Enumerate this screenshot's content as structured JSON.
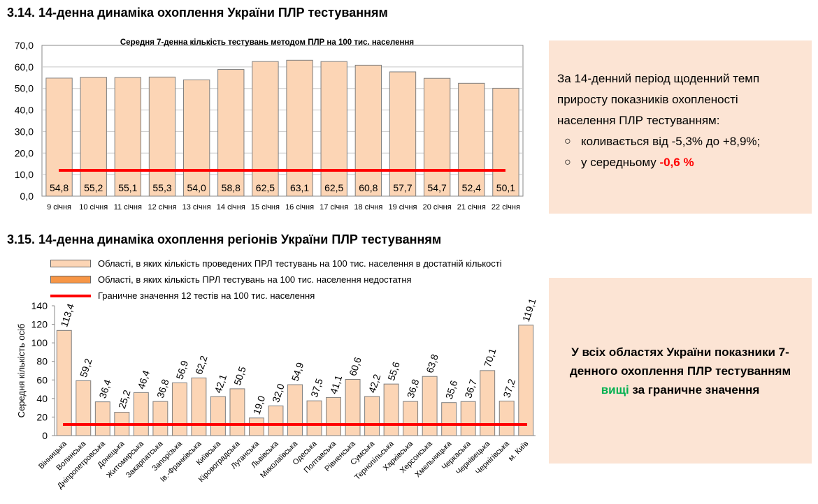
{
  "section1": {
    "title": "3.14.  14-денна динаміка охоплення України ПЛР тестуванням",
    "panel": {
      "intro": "За 14-денний період щоденний темп приросту показників охопленості населення ПЛР тестуванням:",
      "bullet1": "коливається від -5,3% до +8,9%;",
      "bullet2_prefix": "у середньому ",
      "bullet2_value": "-0,6 %",
      "bullet_symbol": "○"
    }
  },
  "section2": {
    "title": "3.15.  14-денна динаміка охоплення регіонів України ПЛР тестуванням",
    "legend": {
      "item1": "Області, в яких кількість проведених ПРЛ тестувань на 100 тис. населення в достатній кількості",
      "item2": "Області, в яких кількість ПРЛ тестувань на 100 тис. населення недостатня",
      "item3": "Граничне значення 12 тестів на 100 тис. населення"
    },
    "panel": {
      "part1": "У всіх областях України показники 7-денного охоплення ПЛР тестуванням ",
      "highlight": "вищі",
      "part2": " за граничне значення"
    }
  },
  "colors": {
    "bar_fill": "#fcd5b5",
    "bar_fill_insufficient": "#f79646",
    "bar_stroke": "#7f7f7f",
    "threshold": "#ff0000",
    "panel_bg": "#fce4d4",
    "highlight_red": "#ff0000",
    "highlight_green": "#00b050"
  },
  "chart_data": [
    {
      "type": "bar",
      "title": "Середня 7-денна кількість тестувань  методом ПЛР на 100 тис. населення",
      "categories": [
        "9 січня",
        "10 січня",
        "11 січня",
        "12 січня",
        "13 січня",
        "14 січня",
        "15 січня",
        "16 січня",
        "17 січня",
        "18 січня",
        "19 січня",
        "20 січня",
        "21 січня",
        "22 січня"
      ],
      "values": [
        54.8,
        55.2,
        55.1,
        55.3,
        54.0,
        58.8,
        62.5,
        63.1,
        62.5,
        60.8,
        57.7,
        54.7,
        52.4,
        50.1
      ],
      "value_labels": [
        "54,8",
        "55,2",
        "55,1",
        "55,3",
        "54,0",
        "58,8",
        "62,5",
        "63,1",
        "62,5",
        "60,8",
        "57,7",
        "54,7",
        "52,4",
        "50,1"
      ],
      "ylim": [
        0,
        70
      ],
      "yticks": [
        "0,0",
        "10,0",
        "20,0",
        "30,0",
        "40,0",
        "50,0",
        "60,0",
        "70,0"
      ],
      "threshold": 12,
      "grid": true
    },
    {
      "type": "bar",
      "ylabel": "Середня кількість осіб",
      "categories": [
        "Вінницька",
        "Волинська",
        "Дніпропетровська",
        "Донецька",
        "Житомирська",
        "Закарпатська",
        "Запорізька",
        "Ів.-Франківська",
        "Київська",
        "Кіровоградська",
        "Луганська",
        "Львівська",
        "Миколаївська",
        "Одеська",
        "Полтавська",
        "Рівненська",
        "Сумська",
        "Тернопільська",
        "Харківська",
        "Херсонська",
        "Хмельницька",
        "Черкаська",
        "Чернівецька",
        "Чернігівська",
        "м. Київ"
      ],
      "values": [
        113.4,
        59.2,
        36.4,
        25.2,
        46.4,
        36.8,
        56.9,
        62.2,
        42.1,
        50.5,
        19.0,
        32.0,
        54.9,
        37.5,
        41.1,
        60.6,
        42.2,
        55.6,
        36.8,
        63.8,
        35.6,
        36.7,
        70.1,
        37.2,
        119.1
      ],
      "value_labels": [
        "113,4",
        "59,2",
        "36,4",
        "25,2",
        "46,4",
        "36,8",
        "56,9",
        "62,2",
        "42,1",
        "50,5",
        "19,0",
        "32,0",
        "54,9",
        "37,5",
        "41,1",
        "60,6",
        "42,2",
        "55,6",
        "36,8",
        "63,8",
        "35,6",
        "36,7",
        "70,1",
        "37,2",
        "119,1"
      ],
      "ylim": [
        0,
        140
      ],
      "yticks": [
        "0",
        "20",
        "40",
        "60",
        "80",
        "100",
        "120",
        "140"
      ],
      "threshold": 12,
      "legend": "top"
    }
  ]
}
